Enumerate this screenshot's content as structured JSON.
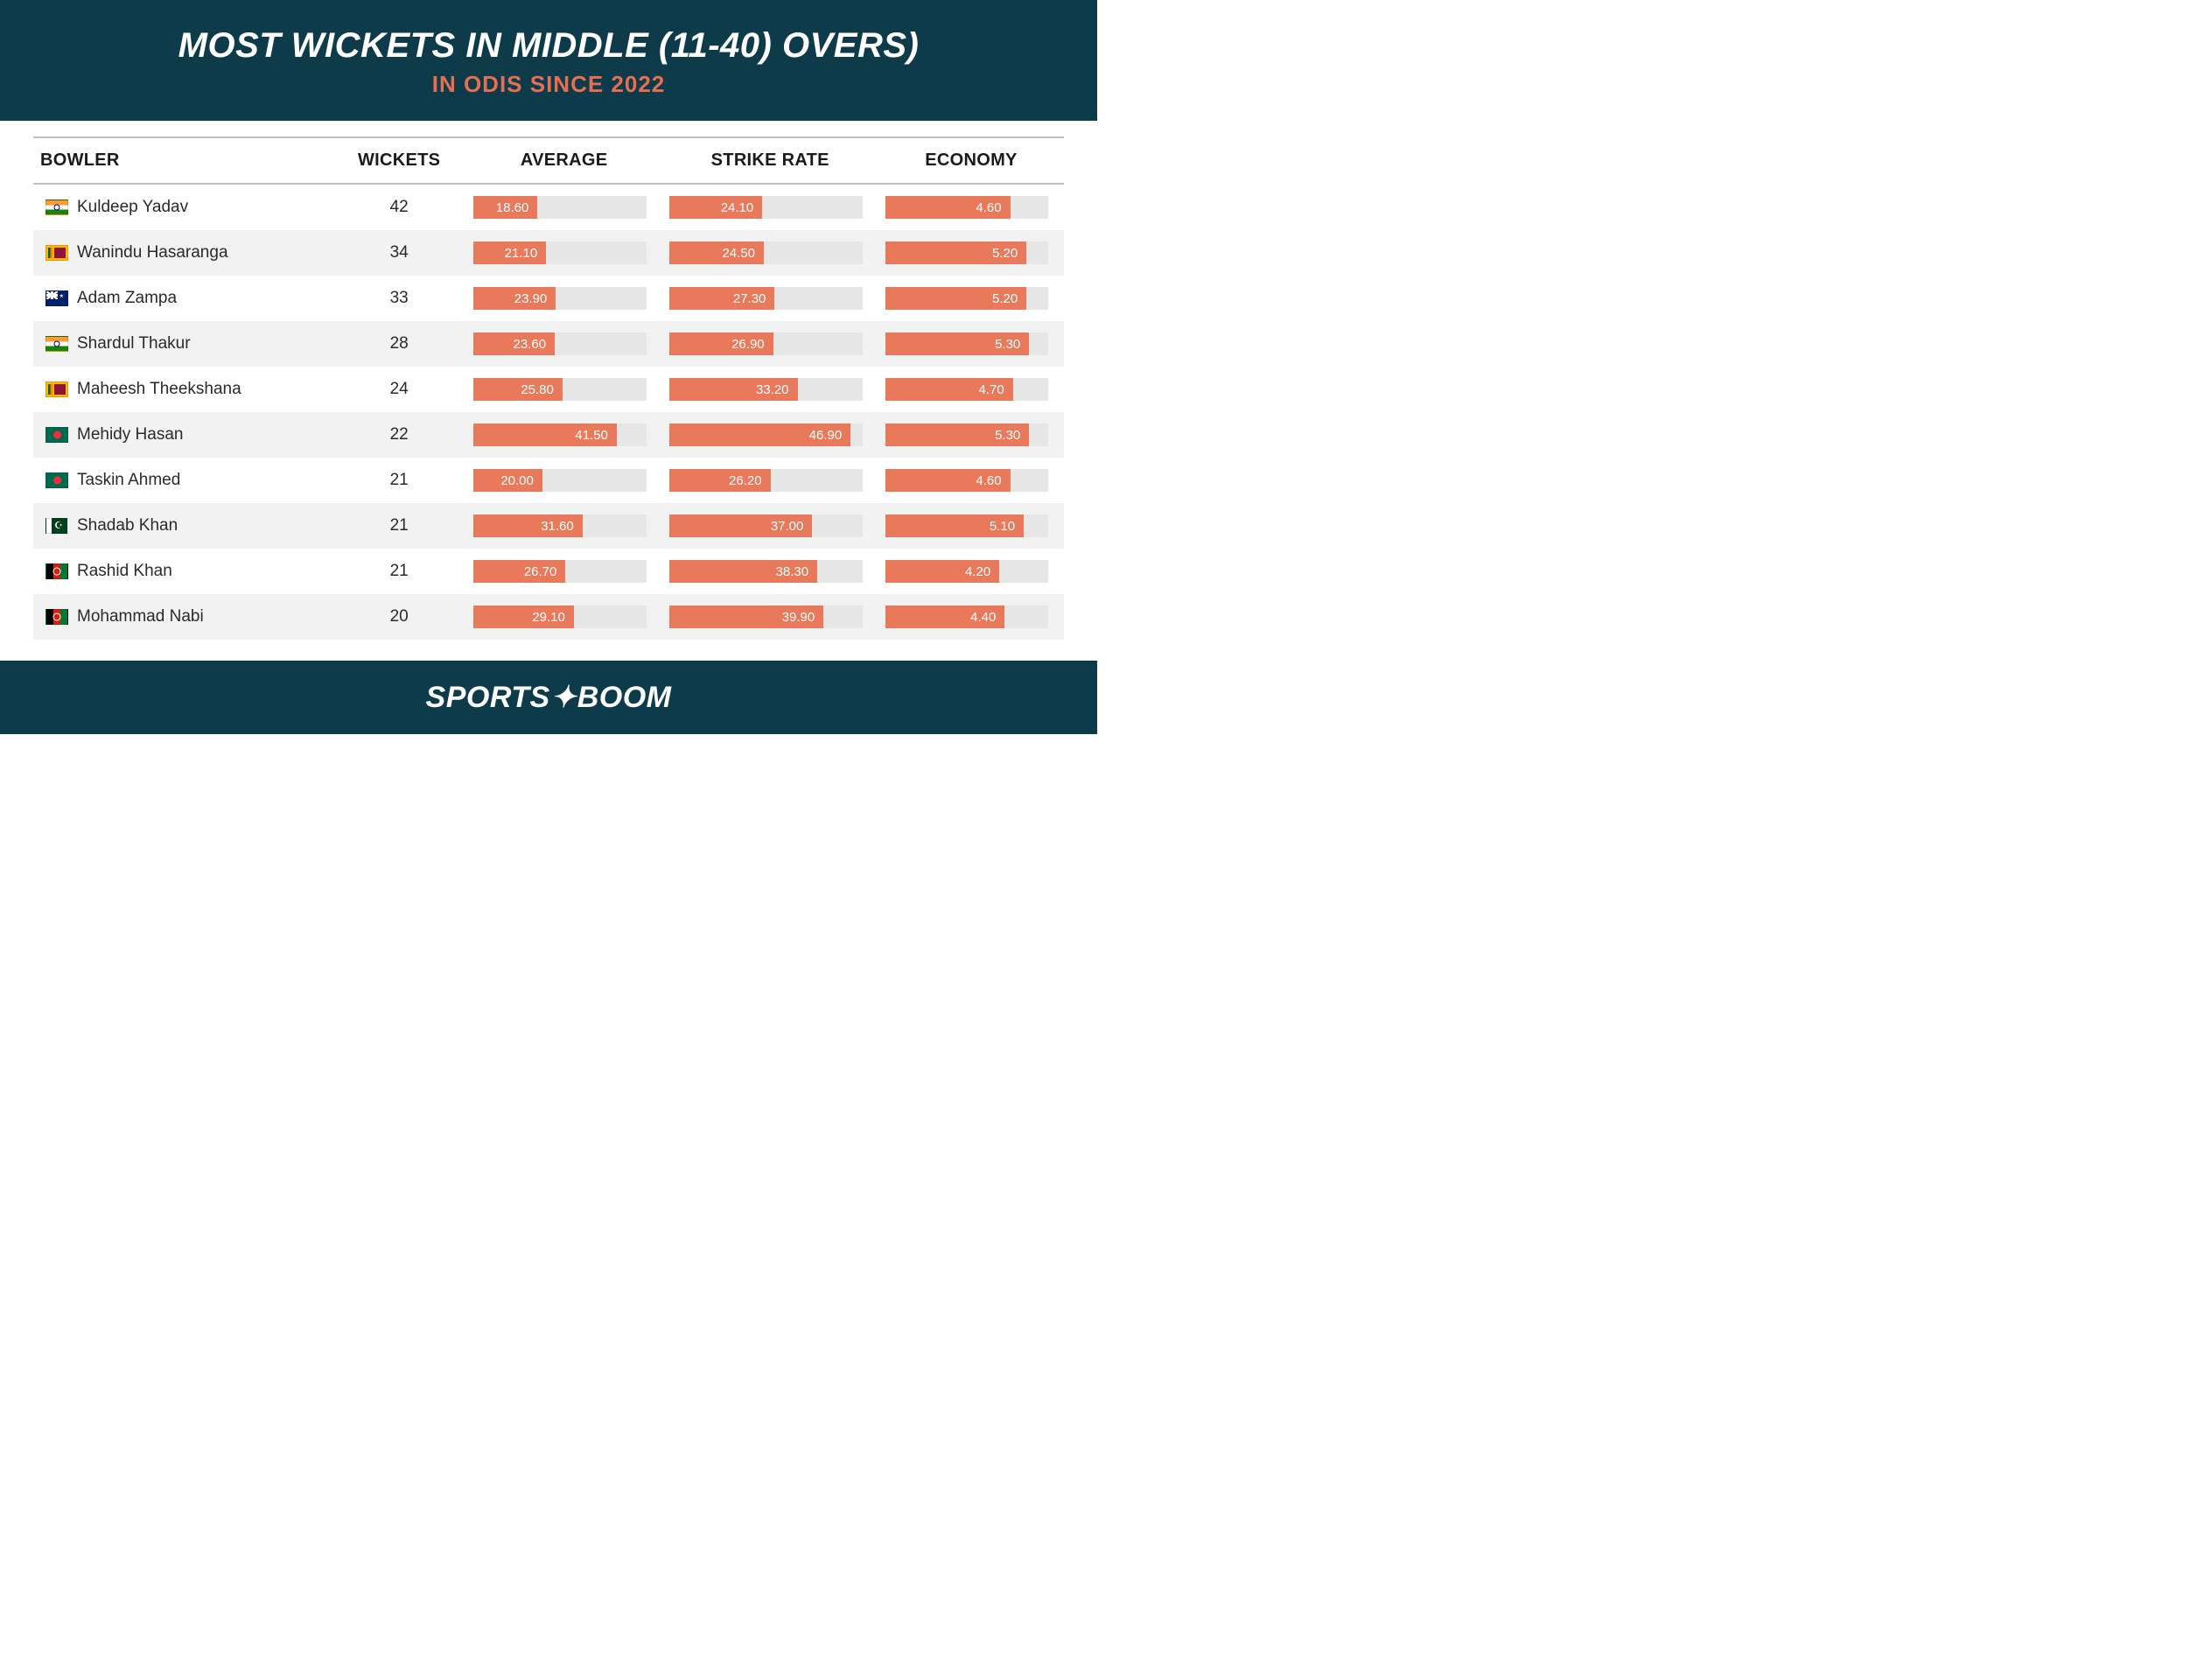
{
  "header": {
    "title": "MOST WICKETS IN MIDDLE (11-40) OVERS)",
    "subtitle": "IN ODIS SINCE 2022",
    "bg_color": "#0d3b4a",
    "title_color": "#ffffff",
    "subtitle_color": "#e76f51",
    "title_fontsize": 40,
    "subtitle_fontsize": 26
  },
  "columns": {
    "bowler": "BOWLER",
    "wickets": "WICKETS",
    "average": "AVERAGE",
    "strike_rate": "STRIKE RATE",
    "economy": "ECONOMY"
  },
  "bars": {
    "fill_color": "#e8795b",
    "track_color": "#e6e6e6",
    "text_color": "#ffffff",
    "average_max": 50,
    "strike_rate_max": 50,
    "economy_max": 6
  },
  "row_alt_bg": "#f2f2f2",
  "rows": [
    {
      "flag": "ind",
      "bowler": "Kuldeep Yadav",
      "wickets": 42,
      "average": 18.6,
      "strike_rate": 24.1,
      "economy": 4.6
    },
    {
      "flag": "sri",
      "bowler": "Wanindu Hasaranga",
      "wickets": 34,
      "average": 21.1,
      "strike_rate": 24.5,
      "economy": 5.2
    },
    {
      "flag": "aus",
      "bowler": "Adam Zampa",
      "wickets": 33,
      "average": 23.9,
      "strike_rate": 27.3,
      "economy": 5.2
    },
    {
      "flag": "ind",
      "bowler": "Shardul Thakur",
      "wickets": 28,
      "average": 23.6,
      "strike_rate": 26.9,
      "economy": 5.3
    },
    {
      "flag": "sri",
      "bowler": "Maheesh Theekshana",
      "wickets": 24,
      "average": 25.8,
      "strike_rate": 33.2,
      "economy": 4.7
    },
    {
      "flag": "ban",
      "bowler": "Mehidy Hasan",
      "wickets": 22,
      "average": 41.5,
      "strike_rate": 46.9,
      "economy": 5.3
    },
    {
      "flag": "ban",
      "bowler": "Taskin Ahmed",
      "wickets": 21,
      "average": 20.0,
      "strike_rate": 26.2,
      "economy": 4.6
    },
    {
      "flag": "pak",
      "bowler": "Shadab Khan",
      "wickets": 21,
      "average": 31.6,
      "strike_rate": 37.0,
      "economy": 5.1
    },
    {
      "flag": "afg",
      "bowler": "Rashid Khan",
      "wickets": 21,
      "average": 26.7,
      "strike_rate": 38.3,
      "economy": 4.2
    },
    {
      "flag": "afg",
      "bowler": "Mohammad Nabi",
      "wickets": 20,
      "average": 29.1,
      "strike_rate": 39.9,
      "economy": 4.4
    }
  ],
  "footer": {
    "brand_pre": "SPORTS",
    "brand_post": "BOOM",
    "bg_color": "#0d3b4a",
    "text_color": "#ffffff"
  },
  "col_widths": {
    "bowler": "29%",
    "wickets": "13%",
    "average": "19%",
    "strike_rate": "21%",
    "economy": "18%"
  }
}
